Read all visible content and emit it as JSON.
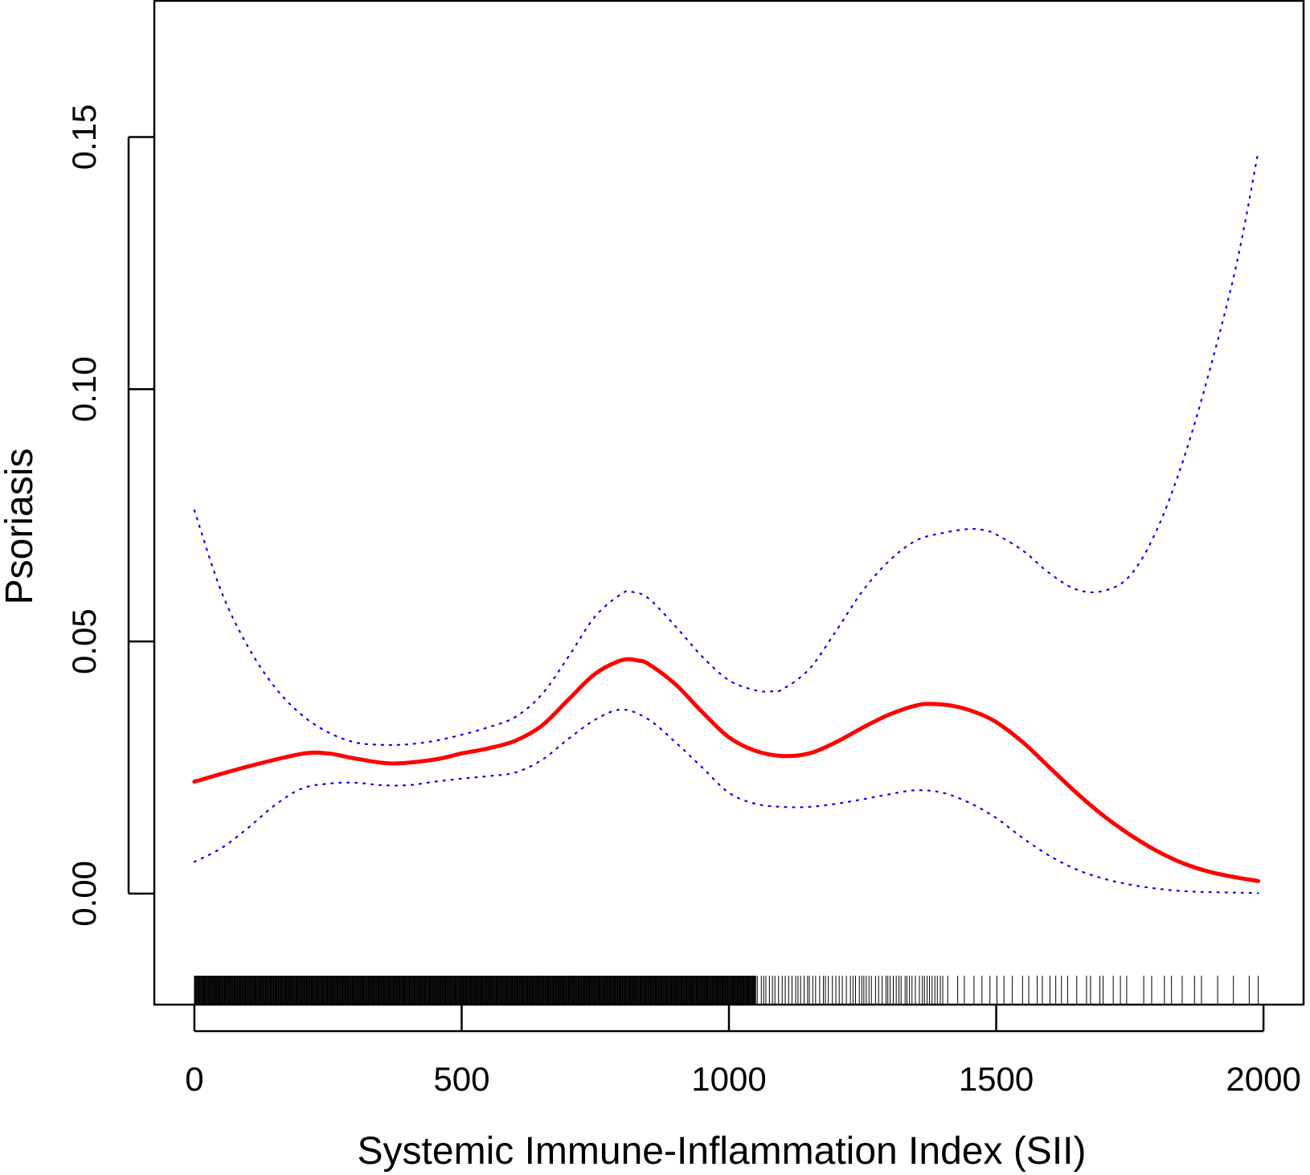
{
  "chart_data": {
    "type": "line",
    "title": "",
    "xlabel": "Systemic Immune-Inflammation Index (SII)",
    "ylabel": "Psoriasis",
    "xlim": [
      -75,
      2075
    ],
    "ylim": [
      -0.022,
      0.177
    ],
    "x_ticks": [
      0,
      500,
      1000,
      1500,
      2000
    ],
    "x_tick_labels": [
      "0",
      "500",
      "1000",
      "1500",
      "2000"
    ],
    "y_ticks": [
      0.0,
      0.05,
      0.1,
      0.15
    ],
    "y_tick_labels": [
      "0.00",
      "0.05",
      "0.10",
      "0.15"
    ],
    "grid": false,
    "legend": "none",
    "series": [
      {
        "role": "fit",
        "color": "#ff0000",
        "style": "solid",
        "x": [
          0,
          100,
          200,
          250,
          300,
          370,
          450,
          500,
          550,
          600,
          650,
          700,
          750,
          800,
          830,
          850,
          900,
          950,
          1000,
          1050,
          1100,
          1150,
          1200,
          1250,
          1300,
          1350,
          1380,
          1420,
          1460,
          1500,
          1550,
          1600,
          1650,
          1700,
          1750,
          1800,
          1850,
          1900,
          1950,
          1990
        ],
        "y": [
          0.0222,
          0.0252,
          0.0277,
          0.0278,
          0.0268,
          0.0258,
          0.0266,
          0.0278,
          0.0288,
          0.0303,
          0.0333,
          0.0385,
          0.0436,
          0.0463,
          0.0462,
          0.0455,
          0.0415,
          0.036,
          0.031,
          0.0283,
          0.0273,
          0.0278,
          0.03,
          0.0329,
          0.0355,
          0.0373,
          0.0376,
          0.0372,
          0.036,
          0.034,
          0.03,
          0.025,
          0.02,
          0.0155,
          0.0117,
          0.0085,
          0.006,
          0.0043,
          0.0032,
          0.0025
        ]
      },
      {
        "role": "upper-ci",
        "color": "#0000ff",
        "style": "dotted",
        "x": [
          0,
          50,
          100,
          150,
          200,
          250,
          300,
          350,
          400,
          450,
          500,
          550,
          600,
          650,
          700,
          750,
          800,
          820,
          850,
          900,
          950,
          1000,
          1050,
          1080,
          1100,
          1150,
          1200,
          1250,
          1300,
          1350,
          1400,
          1450,
          1480,
          1500,
          1550,
          1600,
          1650,
          1700,
          1750,
          1800,
          1850,
          1900,
          1950,
          1990
        ],
        "y": [
          0.076,
          0.06,
          0.049,
          0.041,
          0.0355,
          0.032,
          0.03,
          0.0295,
          0.0296,
          0.0303,
          0.0315,
          0.033,
          0.035,
          0.0395,
          0.047,
          0.055,
          0.0595,
          0.0598,
          0.0585,
          0.053,
          0.047,
          0.0423,
          0.0403,
          0.0401,
          0.0405,
          0.0445,
          0.052,
          0.06,
          0.066,
          0.07,
          0.0715,
          0.0723,
          0.072,
          0.0712,
          0.068,
          0.0635,
          0.0603,
          0.06,
          0.063,
          0.072,
          0.086,
          0.104,
          0.125,
          0.147
        ]
      },
      {
        "role": "lower-ci",
        "color": "#0000ff",
        "style": "dotted",
        "x": [
          0,
          50,
          100,
          150,
          200,
          250,
          300,
          350,
          400,
          450,
          500,
          550,
          600,
          650,
          700,
          750,
          800,
          850,
          900,
          950,
          1000,
          1050,
          1100,
          1150,
          1200,
          1250,
          1300,
          1350,
          1400,
          1450,
          1500,
          1550,
          1600,
          1650,
          1700,
          1750,
          1800,
          1850,
          1900,
          1950,
          1990
        ],
        "y": [
          0.0063,
          0.009,
          0.013,
          0.0175,
          0.0208,
          0.0218,
          0.022,
          0.0215,
          0.0215,
          0.0222,
          0.0228,
          0.0233,
          0.024,
          0.0265,
          0.0307,
          0.0345,
          0.0365,
          0.0345,
          0.03,
          0.025,
          0.02,
          0.0178,
          0.0172,
          0.0172,
          0.0178,
          0.0187,
          0.0197,
          0.0205,
          0.02,
          0.018,
          0.015,
          0.011,
          0.0075,
          0.0048,
          0.003,
          0.0018,
          0.001,
          0.0005,
          0.0003,
          0.0002,
          0.0001
        ]
      }
    ]
  }
}
